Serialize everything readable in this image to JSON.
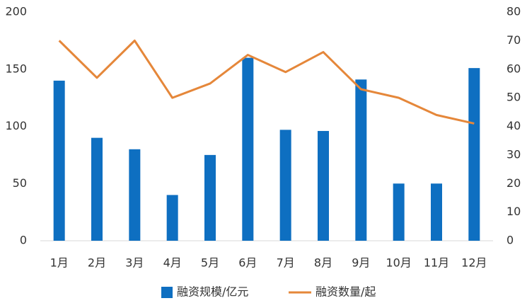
{
  "chart_data": {
    "type": "bar",
    "categories": [
      "1月",
      "2月",
      "3月",
      "4月",
      "5月",
      "6月",
      "7月",
      "8月",
      "9月",
      "10月",
      "11月",
      "12月"
    ],
    "series": [
      {
        "name": "融资规模/亿元",
        "type": "bar",
        "color": "#0e6fc1",
        "values": [
          140,
          90,
          80,
          40,
          75,
          160,
          97,
          96,
          141,
          50,
          50,
          151
        ]
      },
      {
        "name": "融资数量/起",
        "type": "line",
        "axis": "y2",
        "color": "#e5873a",
        "values": [
          70,
          57,
          70,
          50,
          55,
          65,
          59,
          66,
          53,
          50,
          44,
          41
        ]
      }
    ],
    "ylim": [
      0,
      200
    ],
    "yticks": [
      0,
      50,
      100,
      150,
      200
    ],
    "y2lim": [
      0,
      80
    ],
    "y2ticks": [
      0,
      10,
      20,
      30,
      40,
      50,
      60,
      70,
      80
    ],
    "grid": false,
    "legend": "bottom"
  }
}
